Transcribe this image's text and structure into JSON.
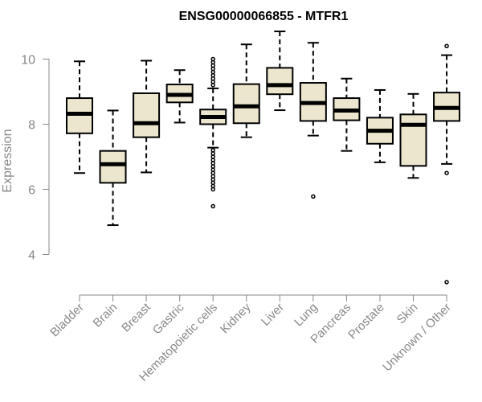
{
  "chart_data": {
    "type": "box",
    "title": "ENSG00000066855 - MTFR1",
    "xlabel": "",
    "ylabel": "Expression",
    "ylim": [
      3.0,
      10.9
    ],
    "yticks": [
      "4",
      "6",
      "8",
      "10"
    ],
    "grid": false,
    "legend": "none",
    "box_fill": "#ede6cf",
    "categories": [
      "Bladder",
      "Brain",
      "Breast",
      "Gastric",
      "Hematopoietic cells",
      "Kidney",
      "Liver",
      "Lung",
      "Pancreas",
      "Prostate",
      "Skin",
      "Unknown / Other"
    ],
    "boxes": [
      {
        "whisker_low": 6.5,
        "q1": 7.72,
        "median": 8.32,
        "q3": 8.8,
        "whisker_high": 9.93,
        "outliers": []
      },
      {
        "whisker_low": 4.9,
        "q1": 6.2,
        "median": 6.77,
        "q3": 7.18,
        "whisker_high": 8.42,
        "outliers": []
      },
      {
        "whisker_low": 6.52,
        "q1": 7.6,
        "median": 8.03,
        "q3": 8.95,
        "whisker_high": 9.95,
        "outliers": []
      },
      {
        "whisker_low": 8.05,
        "q1": 8.67,
        "median": 8.9,
        "q3": 9.22,
        "whisker_high": 9.66,
        "outliers": []
      },
      {
        "whisker_low": 7.28,
        "q1": 8.0,
        "median": 8.22,
        "q3": 8.45,
        "whisker_high": 9.1,
        "outliers": [
          5.48,
          6.0,
          6.1,
          6.2,
          6.3,
          6.4,
          6.5,
          6.6,
          6.7,
          6.8,
          6.9,
          7.0,
          7.1,
          7.2,
          9.2,
          9.3,
          9.4,
          9.5,
          9.6,
          9.7,
          9.8,
          9.9,
          10.0
        ]
      },
      {
        "whisker_low": 7.6,
        "q1": 8.03,
        "median": 8.55,
        "q3": 9.23,
        "whisker_high": 10.45,
        "outliers": []
      },
      {
        "whisker_low": 8.43,
        "q1": 8.92,
        "median": 9.2,
        "q3": 9.73,
        "whisker_high": 10.85,
        "outliers": []
      },
      {
        "whisker_low": 7.65,
        "q1": 8.1,
        "median": 8.65,
        "q3": 9.27,
        "whisker_high": 10.5,
        "outliers": [
          5.78
        ]
      },
      {
        "whisker_low": 7.18,
        "q1": 8.12,
        "median": 8.42,
        "q3": 8.8,
        "whisker_high": 9.4,
        "outliers": []
      },
      {
        "whisker_low": 6.83,
        "q1": 7.4,
        "median": 7.8,
        "q3": 8.2,
        "whisker_high": 9.05,
        "outliers": []
      },
      {
        "whisker_low": 6.35,
        "q1": 6.72,
        "median": 7.98,
        "q3": 8.3,
        "whisker_high": 8.93,
        "outliers": []
      },
      {
        "whisker_low": 6.78,
        "q1": 8.1,
        "median": 8.5,
        "q3": 8.97,
        "whisker_high": 10.12,
        "outliers": [
          3.15,
          6.5,
          10.4
        ]
      }
    ]
  }
}
